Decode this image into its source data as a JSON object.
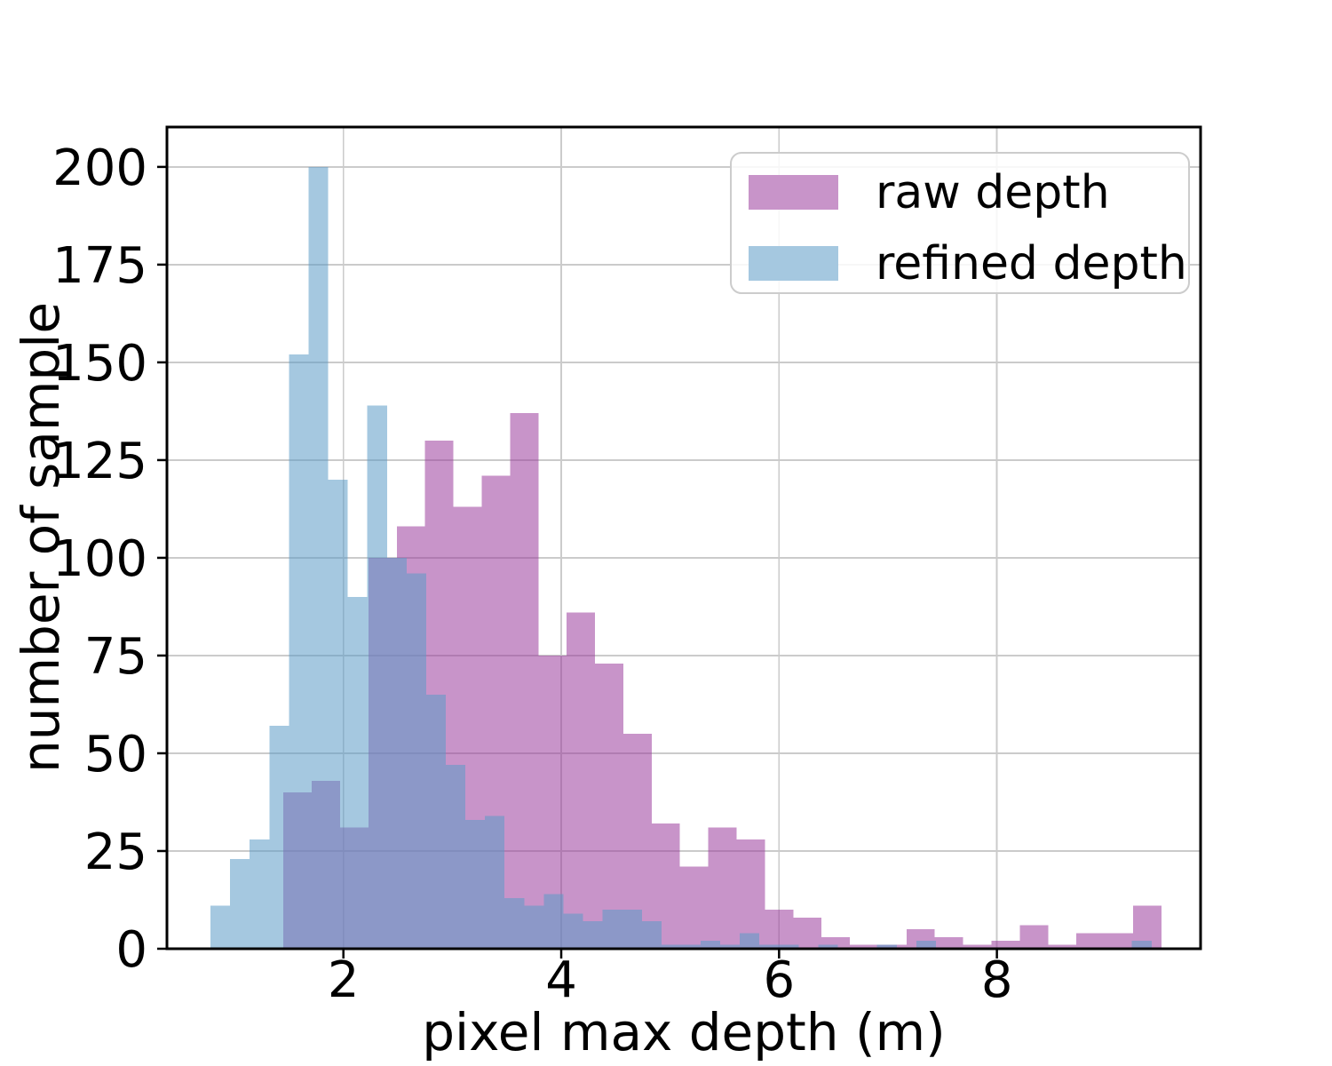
{
  "figure": {
    "background": "#ffffff",
    "spine_color": "#000000",
    "grid_color": "#cbcbcb",
    "text_color": "#000000"
  },
  "chart_data": {
    "type": "histogram",
    "title": "",
    "xlabel": "pixel max depth (m)",
    "ylabel": "number of sample",
    "xlim": [
      0.38,
      9.87
    ],
    "ylim": [
      0,
      210.2
    ],
    "xticks": [
      "2",
      "4",
      "6",
      "8"
    ],
    "xtick_values": [
      2,
      4,
      6,
      8
    ],
    "yticks": [
      "0",
      "25",
      "50",
      "75",
      "100",
      "125",
      "150",
      "175",
      "200"
    ],
    "ytick_values": [
      0,
      25,
      50,
      75,
      100,
      125,
      150,
      175,
      200
    ],
    "grid": true,
    "legend_position": "upper right",
    "series": [
      {
        "name": "raw depth",
        "bin_start": 1.45,
        "bin_width": 0.26,
        "counts": [
          40,
          43,
          31,
          100,
          108,
          130,
          113,
          121,
          137,
          75,
          86,
          73,
          55,
          32,
          21,
          31,
          28,
          10,
          8,
          3,
          1,
          1,
          5,
          3,
          1,
          2,
          6,
          1,
          4,
          4,
          11
        ],
        "fill_rgba": "rgba(155,61,157,0.55)",
        "apparent_color": "#ca98cb"
      },
      {
        "name": "refined depth",
        "bin_start": 0.78,
        "bin_width": 0.18,
        "counts": [
          11,
          23,
          28,
          57,
          152,
          200,
          120,
          90,
          139,
          100,
          96,
          65,
          47,
          33,
          34,
          13,
          11,
          14,
          9,
          7,
          10,
          10,
          7,
          1,
          1,
          2,
          1,
          4,
          1,
          1,
          0,
          1,
          0,
          0,
          1,
          0,
          2,
          0,
          0,
          0,
          0,
          0,
          0,
          0,
          0,
          0,
          0,
          2
        ],
        "fill_rgba": "rgba(91,155,199,0.55)",
        "apparent_color": "#a5c8e0"
      }
    ],
    "overlap_apparent_color": "#888cc3"
  },
  "legend": {
    "items": [
      {
        "label": "raw depth",
        "swatch_color": "#c894c9"
      },
      {
        "label": "refined depth",
        "swatch_color": "#a5c8e0"
      }
    ],
    "border_color": "#cccccc",
    "background": "rgba(255,255,255,0.85)"
  }
}
